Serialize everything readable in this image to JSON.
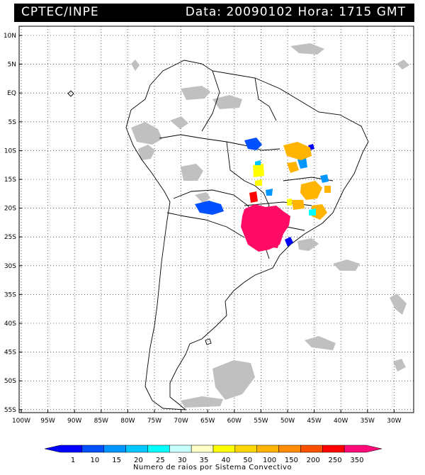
{
  "header": {
    "source": "CPTEC/INPE",
    "datetime": "Data: 20090102 Hora: 1715 GMT"
  },
  "map": {
    "lon_labels": [
      "100W",
      "95W",
      "90W",
      "85W",
      "80W",
      "75W",
      "70W",
      "65W",
      "60W",
      "55W",
      "50W",
      "45W",
      "40W",
      "35W",
      "30W"
    ],
    "lat_labels": [
      "10N",
      "5N",
      "EQ",
      "5S",
      "10S",
      "15S",
      "20S",
      "25S",
      "30S",
      "35S",
      "40S",
      "45S",
      "50S",
      "55S"
    ]
  },
  "colorbar": {
    "labels": [
      "1",
      "10",
      "15",
      "20",
      "25",
      "30",
      "35",
      "40",
      "50",
      "100",
      "150",
      "200",
      "250",
      "350"
    ],
    "colors": [
      "#0000ff",
      "#0050ff",
      "#0096ff",
      "#00c8ff",
      "#00ffff",
      "#c8ffff",
      "#ffffc8",
      "#ffff00",
      "#ffd700",
      "#ffb400",
      "#ff8c00",
      "#ff5000",
      "#ff0000",
      "#ff0a78"
    ],
    "caption": "Numero de raios por Sistema Convectivo"
  },
  "colors": {
    "cloud_gray": "#c0c0c0",
    "magenta": "#ff0a64",
    "red": "#ff0000",
    "orange": "#ffb400",
    "yellow": "#ffff00",
    "blue": "#0050ff",
    "cyan": "#00ffff"
  }
}
